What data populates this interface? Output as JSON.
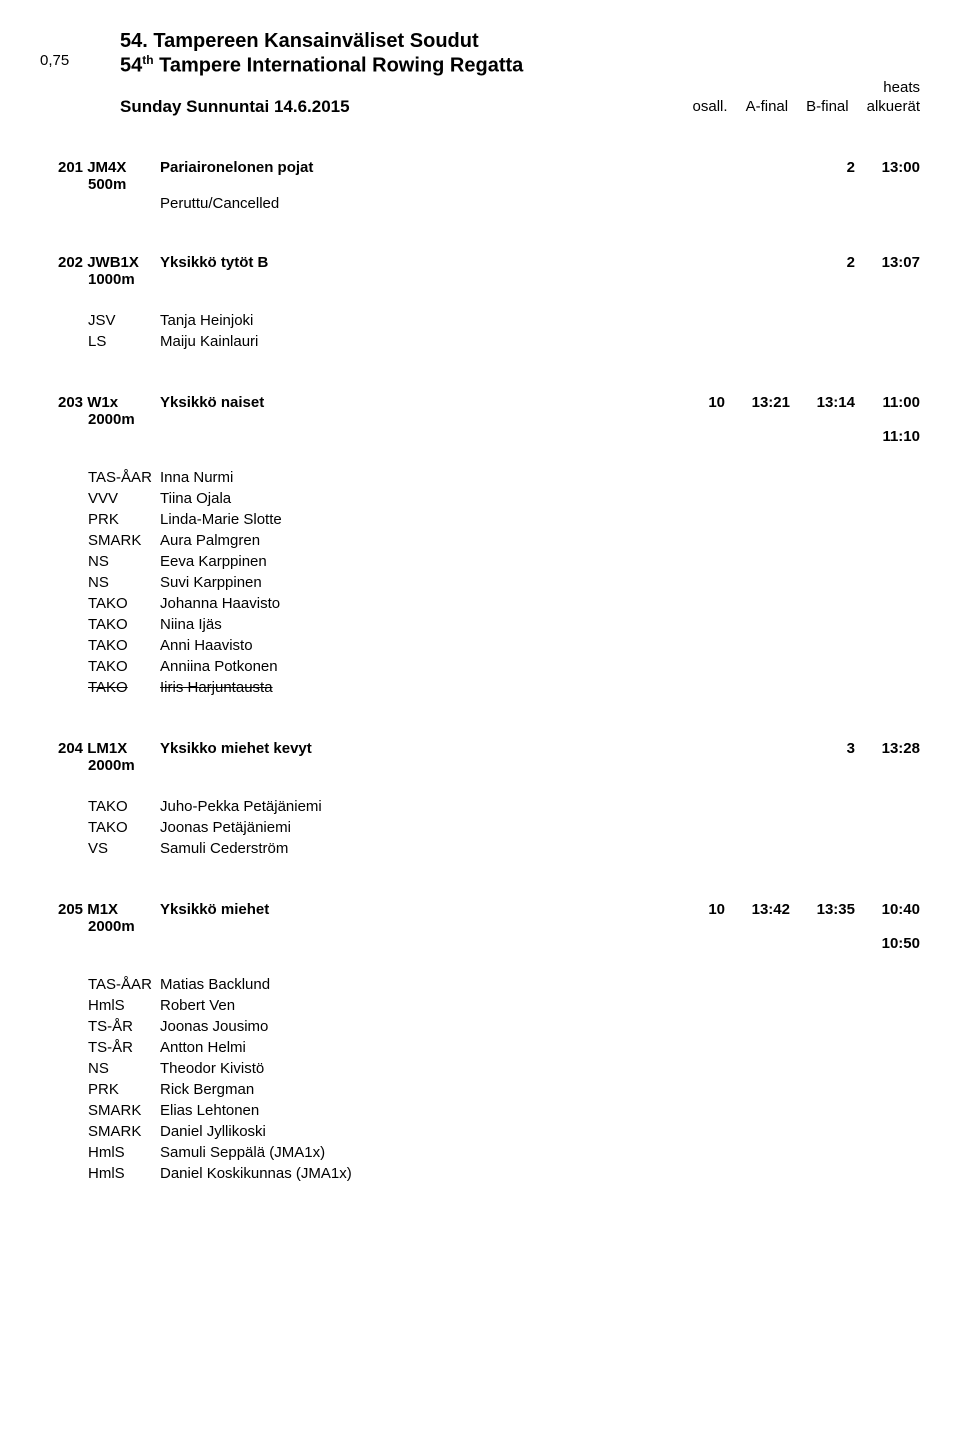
{
  "header": {
    "margin_number": "0,75",
    "title_main": "54. Tampereen Kansainväliset Soudut",
    "title_sub_prefix": "54",
    "title_sub_ord": "th",
    "title_sub_rest": " Tampere International Rowing Regatta",
    "date": "Sunday Sunnuntai 14.6.2015",
    "corner_top": "heats",
    "corner_osall": "osall.",
    "corner_afinal": "A-final",
    "corner_bfinal": "B-final",
    "corner_alk": "alkuerät"
  },
  "events": [
    {
      "num": "201",
      "code": "JM4X",
      "dist": "500m",
      "name": "Pariaironelonen pojat",
      "count": "2",
      "t1": "13:00",
      "t2": "",
      "t3": "",
      "t3b": "",
      "subtitle": "Peruttu/Cancelled",
      "entries": []
    },
    {
      "num": "202",
      "code": "JWB1X",
      "dist": "1000m",
      "name": "Yksikkö tytöt B",
      "count": "2",
      "t1": "13:07",
      "t2": "",
      "t3": "",
      "t3b": "",
      "subtitle": "",
      "entries": [
        {
          "club": "JSV",
          "name": "Tanja Heinjoki"
        },
        {
          "club": "LS",
          "name": "Maiju Kainlauri"
        }
      ]
    },
    {
      "num": "203",
      "code": "W1x",
      "dist": "2000m",
      "name": "Yksikkö naiset",
      "count": "10",
      "t1": "13:21",
      "t2": "13:14",
      "t3": "11:00",
      "t3b": "11:10",
      "subtitle": "",
      "entries": [
        {
          "club": "TAS-ÅAR",
          "name": "Inna Nurmi"
        },
        {
          "club": "VVV",
          "name": "Tiina Ojala"
        },
        {
          "club": "PRK",
          "name": "Linda-Marie Slotte"
        },
        {
          "club": "SMARK",
          "name": "Aura Palmgren"
        },
        {
          "club": "NS",
          "name": "Eeva Karppinen"
        },
        {
          "club": "NS",
          "name": "Suvi Karppinen"
        },
        {
          "club": "TAKO",
          "name": "Johanna Haavisto"
        },
        {
          "club": "TAKO",
          "name": "Niina Ijäs"
        },
        {
          "club": "TAKO",
          "name": "Anni Haavisto"
        },
        {
          "club": "TAKO",
          "name": "Anniina Potkonen"
        },
        {
          "club": "TAKO",
          "name": "Iiris Harjuntausta",
          "strike": true
        }
      ]
    },
    {
      "num": "204",
      "code": "LM1X",
      "dist": "2000m",
      "name": "Yksikko miehet kevyt",
      "count": "3",
      "t1": "13:28",
      "t2": "",
      "t3": "",
      "t3b": "",
      "subtitle": "",
      "entries": [
        {
          "club": "TAKO",
          "name": "Juho-Pekka Petäjäniemi"
        },
        {
          "club": "TAKO",
          "name": "Joonas Petäjäniemi"
        },
        {
          "club": "VS",
          "name": "Samuli Cederström"
        }
      ]
    },
    {
      "num": "205",
      "code": "M1X",
      "dist": "2000m",
      "name": "Yksikkö miehet",
      "count": "10",
      "t1": "13:42",
      "t2": "13:35",
      "t3": "10:40",
      "t3b": "10:50",
      "subtitle": "",
      "entries": [
        {
          "club": "TAS-ÅAR",
          "name": "Matias Backlund"
        },
        {
          "club": "HmlS",
          "name": "Robert Ven"
        },
        {
          "club": "TS-ÅR",
          "name": "Joonas Jousimo"
        },
        {
          "club": "TS-ÅR",
          "name": "Antton Helmi"
        },
        {
          "club": "NS",
          "name": "Theodor Kivistö"
        },
        {
          "club": "PRK",
          "name": "Rick Bergman"
        },
        {
          "club": "SMARK",
          "name": "Elias Lehtonen"
        },
        {
          "club": "SMARK",
          "name": "Daniel Jyllikoski"
        },
        {
          "club": "HmlS",
          "name": "Samuli Seppälä (JMA1x)"
        },
        {
          "club": "HmlS",
          "name": "Daniel Koskikunnas (JMA1x)"
        }
      ]
    }
  ]
}
